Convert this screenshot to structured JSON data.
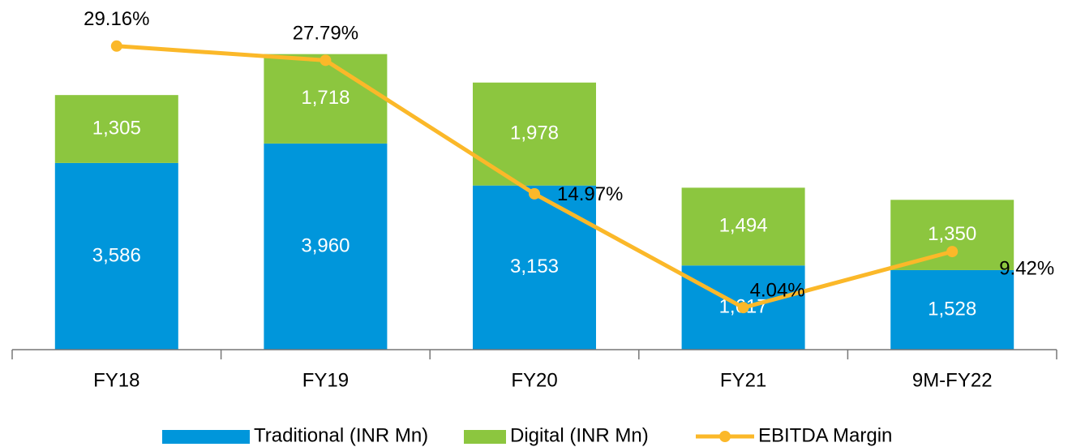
{
  "chart_data": {
    "type": "bar",
    "stacked": true,
    "categories": [
      "FY18",
      "FY19",
      "FY20",
      "FY21",
      "9M-FY22"
    ],
    "series": [
      {
        "name": "Traditional (INR Mn)",
        "color": "#0096db",
        "values": [
          3586,
          3960,
          3153,
          1617,
          1528
        ],
        "value_labels": [
          "3,586",
          "3,960",
          "3,153",
          "1,617",
          "1,528"
        ]
      },
      {
        "name": "Digital (INR Mn)",
        "color": "#8cc63f",
        "values": [
          1305,
          1718,
          1978,
          1494,
          1350
        ],
        "value_labels": [
          "1,305",
          "1,718",
          "1,978",
          "1,494",
          "1,350"
        ]
      },
      {
        "name": "EBITDA Margin",
        "type": "line",
        "axis": "y2",
        "color": "#fbb829",
        "values": [
          29.16,
          27.79,
          14.97,
          4.04,
          9.42
        ],
        "value_labels": [
          "29.16%",
          "27.79%",
          "14.97%",
          "4.04%",
          "9.42%"
        ]
      }
    ],
    "ylim": [
      0,
      6000
    ],
    "y2lim": [
      0,
      30
    ],
    "legend": "bottom"
  }
}
